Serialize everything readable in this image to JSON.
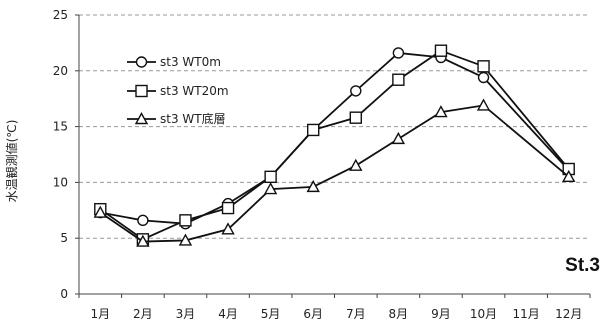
{
  "chart_data": {
    "type": "line",
    "title": "",
    "station_label": "St.3",
    "xlabel": "",
    "ylabel": "水温観測値(℃)",
    "ylim": [
      0,
      25
    ],
    "yticks": [
      "0",
      "5",
      "10",
      "15",
      "20",
      "25"
    ],
    "grid": true,
    "legend_position": "top-left",
    "categories": [
      "1月",
      "2月",
      "3月",
      "4月",
      "5月",
      "6月",
      "7月",
      "8月",
      "9月",
      "10月",
      "11月",
      "12月"
    ],
    "series": [
      {
        "name": "st3 WT0m",
        "marker": "circle",
        "values": [
          7.3,
          6.6,
          6.3,
          8.1,
          10.5,
          14.7,
          18.2,
          21.6,
          21.2,
          19.4,
          null,
          11.1
        ]
      },
      {
        "name": "st3 WT20m",
        "marker": "square",
        "values": [
          7.6,
          4.9,
          6.6,
          7.7,
          10.5,
          14.7,
          15.8,
          19.2,
          21.8,
          20.4,
          null,
          11.2
        ]
      },
      {
        "name": "st3 WT底層",
        "marker": "triangle",
        "values": [
          7.3,
          4.7,
          4.8,
          5.8,
          9.4,
          9.6,
          11.5,
          13.9,
          16.3,
          16.9,
          null,
          10.5
        ]
      }
    ]
  }
}
